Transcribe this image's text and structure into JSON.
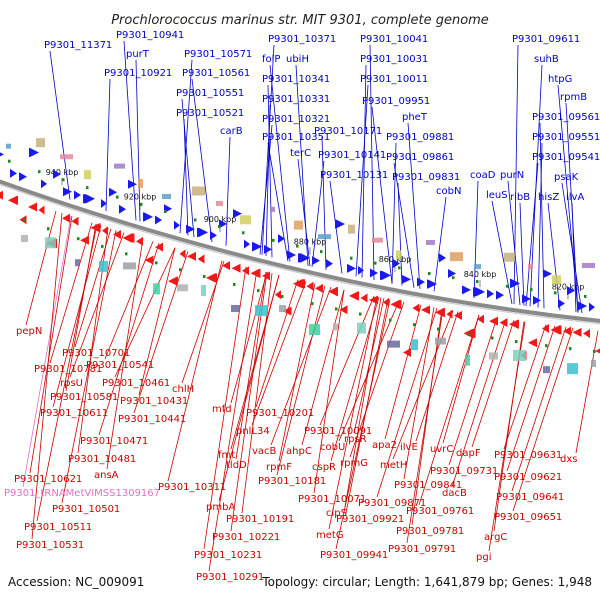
{
  "title": "Prochlorococcus marinus str. MIT 9301, complete genome",
  "footer": {
    "accession": "Accession: NC_009091",
    "topology": "Topology: circular; Length: 1,641,879 bp; Genes: 1,948"
  },
  "colors": {
    "forward": "#0000cc",
    "forward_fill": "#1a1aee",
    "reverse": "#cc0000",
    "reverse_fill": "#ee1a1a",
    "trna": "#e070c8",
    "backbone": "#888888",
    "rna_marker": "#1a8a1a"
  },
  "ticks": [
    "940 kbp",
    "920 kbp",
    "900 kbp",
    "880 kbp",
    "860 kbp",
    "840 kbp",
    "820 kbp"
  ],
  "top_labels": [
    "P9301_11371",
    "P9301_10941",
    "purT",
    "P9301_10921",
    "P9301_10571",
    "P9301_10561",
    "P9301_10551",
    "P9301_10521",
    "carB",
    "P9301_10371",
    "folP",
    "ubiH",
    "P9301_10341",
    "P9301_10331",
    "P9301_10321",
    "P9301_10351",
    "terC",
    "P9301_10041",
    "P9301_10031",
    "P9301_10011",
    "P9301_09951",
    "pheT",
    "P9301_10171",
    "P9301_09881",
    "P9301_10141",
    "P9301_09861",
    "P9301_10131",
    "P9301_09831",
    "coaD",
    "cobN",
    "leuS",
    "purN",
    "ribB",
    "P9301_09611",
    "suhB",
    "htpG",
    "rpmB",
    "P9301_09561",
    "P9301_09551",
    "P9301_09541",
    "psaK",
    "hisZ",
    "ilvA"
  ],
  "bottom_labels": [
    "pepN",
    "P9301_10701",
    "P9301_10781",
    "P9301_10541",
    "rpsU",
    "P9301_10461",
    "P9301_10581",
    "P9301_10431",
    "chlH",
    "P9301_10611",
    "P9301_10441",
    "P9301_10471",
    "P9301_10481",
    "ansA",
    "P9301_10621",
    "P9301_tRNAMetVIMSS1309167",
    "P9301_10501",
    "P9301_10511",
    "P9301_10531",
    "mfd",
    "P9301_10201",
    "fmt",
    "pnlL34",
    "vacB",
    "tldD",
    "rpmF",
    "ahpC",
    "P9301_10181",
    "P9301_10311",
    "pmbA",
    "P9301_10191",
    "P9301_10221",
    "P9301_10231",
    "P9301_10291",
    "P9301_10091",
    "cobU",
    "rpsR",
    "apa2",
    "ilvE",
    "cspR",
    "rpmG",
    "metH",
    "P9301_10071",
    "clpS",
    "P9301_09921",
    "metG",
    "P9301_09941",
    "P9301_09871",
    "P9301_09841",
    "uvrC",
    "dapF",
    "P9301_09731",
    "dacB",
    "P9301_09761",
    "P9301_09781",
    "P9301_09791",
    "P9301_09631",
    "P9301_09621",
    "P9301_09641",
    "P9301_09651",
    "argC",
    "pgi",
    "dxs"
  ]
}
